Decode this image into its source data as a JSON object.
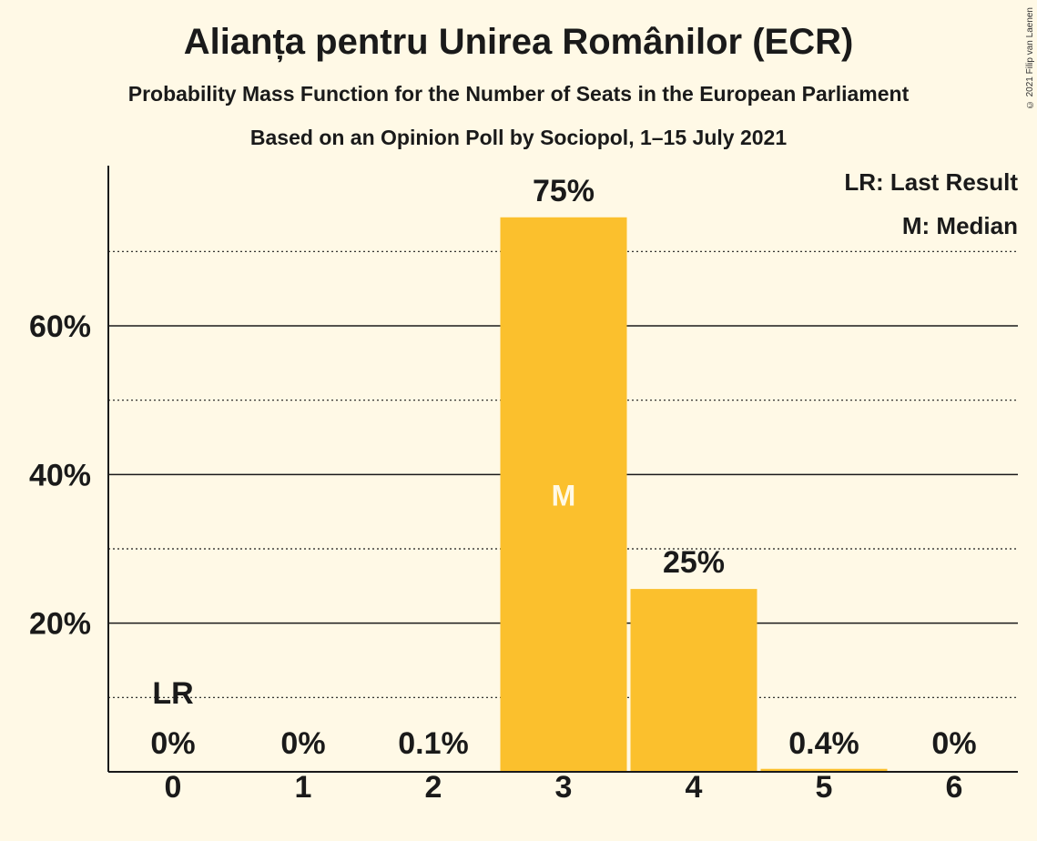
{
  "header": {
    "title": "Alianța pentru Unirea Românilor (ECR)",
    "subtitle": "Probability Mass Function for the Number of Seats in the European Parliament",
    "subtitle2": "Based on an Opinion Poll by Sociopol, 1–15 July 2021"
  },
  "copyright": "© 2021 Filip van Laenen",
  "legend": {
    "last_result": "LR: Last Result",
    "median": "M: Median"
  },
  "colors": {
    "background": "#fff9e6",
    "bar": "#fbc02d",
    "text": "#1a1a1a"
  },
  "chart_data": {
    "type": "bar",
    "categories": [
      "0",
      "1",
      "2",
      "3",
      "4",
      "5",
      "6"
    ],
    "values": [
      0,
      0,
      0.1,
      74.6,
      24.6,
      0.4,
      0
    ],
    "value_labels": [
      "0%",
      "0%",
      "0.1%",
      "75%",
      "25%",
      "0.4%",
      "0%"
    ],
    "ylim": [
      0,
      80
    ],
    "yticks": [
      20,
      40,
      60
    ],
    "ytick_labels": [
      "20%",
      "40%",
      "60%"
    ],
    "minor_gridlines": [
      10,
      30,
      50,
      70
    ],
    "last_result_index": 0,
    "last_result_label": "LR",
    "median_index": 3,
    "median_label": "M",
    "legend_position": "top-right",
    "grid": true
  }
}
